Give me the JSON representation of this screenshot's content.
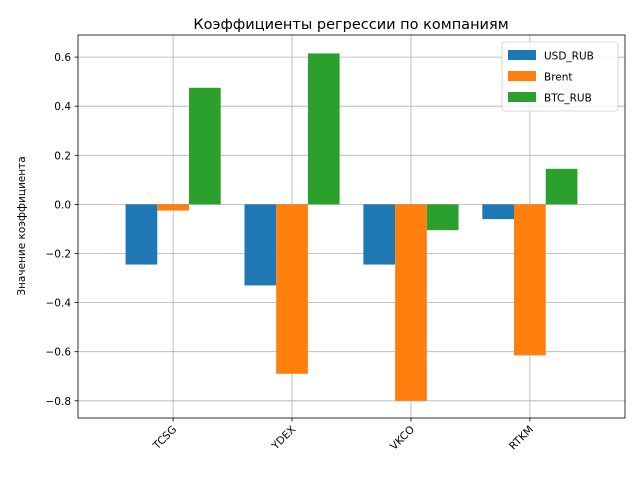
{
  "chart_data": {
    "type": "bar",
    "title": "Коэффициенты регрессии по компаниям",
    "xlabel": "",
    "ylabel": "Значение коэффициента",
    "categories": [
      "TCSG",
      "YDEX",
      "VKCO",
      "RTKM"
    ],
    "series": [
      {
        "name": "USD_RUB",
        "color": "#1f77b4",
        "values": [
          -0.245,
          -0.33,
          -0.245,
          -0.06
        ]
      },
      {
        "name": "Brent",
        "color": "#ff7f0e",
        "values": [
          -0.025,
          -0.69,
          -0.8,
          -0.615
        ]
      },
      {
        "name": "BTC_RUB",
        "color": "#2ca02c",
        "values": [
          0.475,
          0.615,
          -0.105,
          0.145
        ]
      }
    ],
    "ylim": [
      -0.87,
      0.69
    ],
    "yticks": [
      "−0.8",
      "−0.6",
      "−0.4",
      "−0.2",
      "0.0",
      "0.2",
      "0.4",
      "0.6"
    ],
    "grid": true,
    "legend_position": "top-right"
  }
}
